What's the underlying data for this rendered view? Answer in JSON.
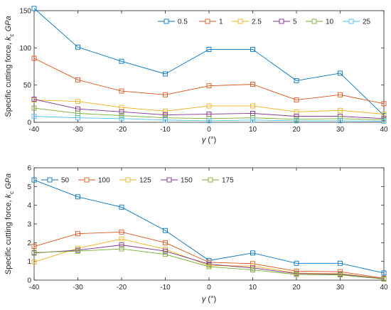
{
  "chart_data": [
    {
      "type": "line",
      "ylabel_main": "Specific cutting force,",
      "ylabel_sym": "k",
      "ylabel_sub": "c",
      "ylabel_unit": "GPa",
      "xlabel_sym": "γ",
      "xlabel_unit": "(°)",
      "xlim": [
        -40,
        40
      ],
      "ylim": [
        0,
        150
      ],
      "xticks": [
        -40,
        -30,
        -20,
        -10,
        0,
        10,
        20,
        30,
        40
      ],
      "yticks": [
        0,
        50,
        100,
        150
      ],
      "x": [
        -40,
        -30,
        -20,
        -10,
        0,
        10,
        20,
        30,
        40
      ],
      "grid": false,
      "legend_placement": "top-right",
      "legend_orientation": "horizontal",
      "series": [
        {
          "name": "0.5",
          "color": "#0072BD",
          "values": [
            153,
            101,
            82,
            65,
            98,
            98,
            56,
            66,
            9
          ]
        },
        {
          "name": "1",
          "color": "#D95319",
          "values": [
            86,
            57,
            42,
            37,
            49,
            51,
            30,
            37,
            25
          ]
        },
        {
          "name": "2.5",
          "color": "#EDB120",
          "values": [
            30,
            28,
            20,
            15,
            22,
            22,
            14,
            16,
            11
          ]
        },
        {
          "name": "5",
          "color": "#7E2F8E",
          "values": [
            31,
            18,
            14,
            10,
            11,
            12,
            8,
            8,
            5
          ]
        },
        {
          "name": "10",
          "color": "#77AC30",
          "values": [
            19,
            12,
            9,
            6,
            5,
            6,
            4,
            5,
            3
          ]
        },
        {
          "name": "25",
          "color": "#4DBEEE",
          "values": [
            8,
            6,
            5,
            3,
            2,
            3,
            2,
            2,
            1.5
          ]
        }
      ]
    },
    {
      "type": "line",
      "ylabel_main": "Specific cutting force,",
      "ylabel_sym": "k",
      "ylabel_sub": "c",
      "ylabel_unit": "GPa",
      "xlabel_sym": "γ",
      "xlabel_unit": "(°)",
      "xlim": [
        -40,
        40
      ],
      "ylim": [
        0,
        6
      ],
      "xticks": [
        -40,
        -30,
        -20,
        -10,
        0,
        10,
        20,
        30,
        40
      ],
      "yticks": [
        0,
        1,
        2,
        3,
        4,
        5,
        6
      ],
      "x": [
        -40,
        -30,
        -20,
        -10,
        0,
        10,
        20,
        30,
        40
      ],
      "grid": false,
      "legend_placement": "top-left",
      "legend_orientation": "horizontal",
      "series": [
        {
          "name": "50",
          "color": "#0072BD",
          "values": [
            5.35,
            4.45,
            3.9,
            2.65,
            1.05,
            1.45,
            0.9,
            0.9,
            0.38
          ]
        },
        {
          "name": "100",
          "color": "#D95319",
          "values": [
            1.8,
            2.48,
            2.57,
            2.0,
            0.95,
            0.88,
            0.48,
            0.45,
            0.1
          ]
        },
        {
          "name": "125",
          "color": "#EDB120",
          "values": [
            0.97,
            1.7,
            2.2,
            1.65,
            0.78,
            0.75,
            0.38,
            0.35,
            0.08
          ]
        },
        {
          "name": "150",
          "color": "#7E2F8E",
          "values": [
            1.45,
            1.6,
            1.88,
            1.55,
            0.85,
            0.65,
            0.35,
            0.32,
            0.07
          ]
        },
        {
          "name": "175",
          "color": "#77AC30",
          "values": [
            1.48,
            1.55,
            1.67,
            1.38,
            0.72,
            0.55,
            0.3,
            0.28,
            0.06
          ]
        }
      ]
    }
  ]
}
